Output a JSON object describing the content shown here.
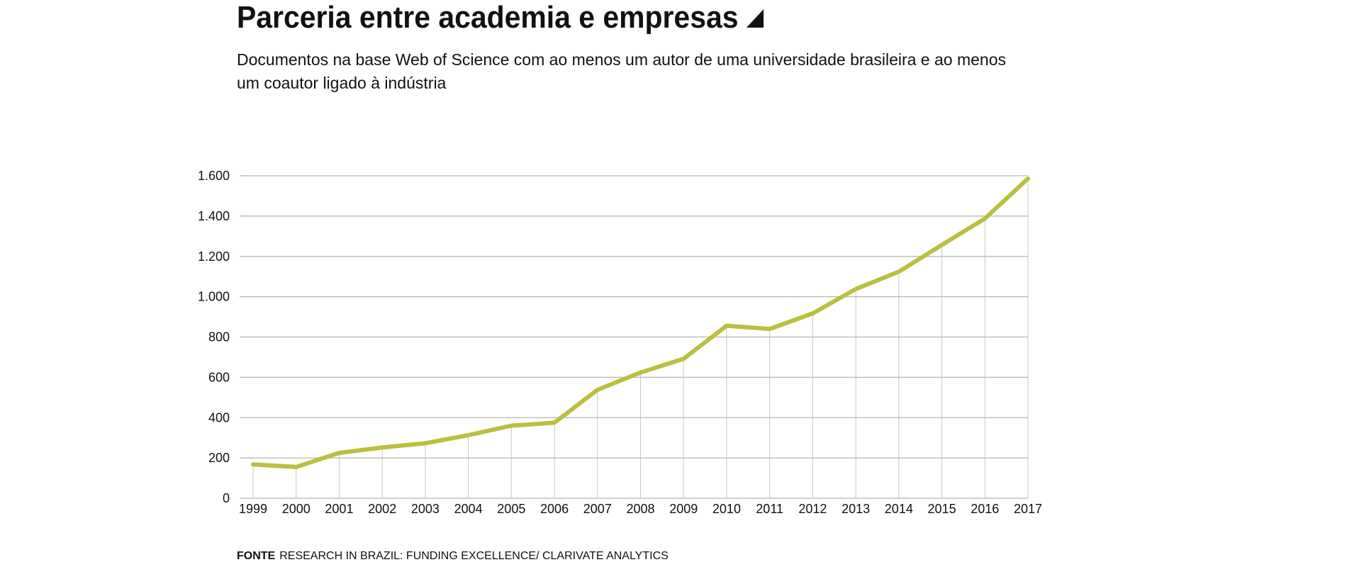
{
  "header": {
    "title": "Parceria entre academia e empresas",
    "subtitle": "Documentos na base Web of Science com ao menos um autor de uma universidade brasileira e ao menos um coautor ligado à indústria"
  },
  "footer": {
    "source_label": "FONTE",
    "source_text": "RESEARCH IN BRAZIL: FUNDING EXCELLENCE/ CLARIVATE ANALYTICS"
  },
  "chart_data": {
    "type": "line",
    "title": "Parceria entre academia e empresas",
    "xlabel": "",
    "ylabel": "",
    "x": [
      "1999",
      "2000",
      "2001",
      "2002",
      "2003",
      "2004",
      "2005",
      "2006",
      "2007",
      "2008",
      "2009",
      "2010",
      "2011",
      "2012",
      "2013",
      "2014",
      "2015",
      "2016",
      "2017"
    ],
    "series": [
      {
        "name": "Documentos",
        "color": "#bbbf3f",
        "values": [
          168,
          155,
          225,
          252,
          273,
          313,
          360,
          375,
          538,
          624,
          692,
          856,
          840,
          917,
          1038,
          1124,
          1257,
          1388,
          1586
        ]
      }
    ],
    "ylim": [
      0,
      1600
    ],
    "yticks": [
      0,
      200,
      400,
      600,
      800,
      1000,
      1200,
      1400,
      1600
    ],
    "ytick_labels": [
      "0",
      "200",
      "400",
      "600",
      "800",
      "1.000",
      "1.200",
      "1.400",
      "1.600"
    ],
    "grid": true,
    "legend": "none"
  }
}
